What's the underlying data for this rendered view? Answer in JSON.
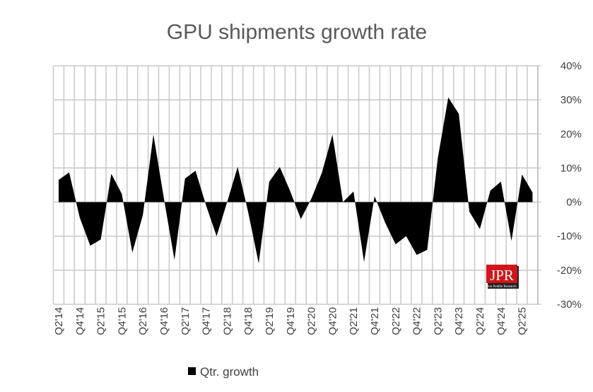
{
  "chart_data": {
    "type": "area",
    "title": "GPU shipments growth rate",
    "categories": [
      "Q2'14",
      "Q3'14",
      "Q4'14",
      "Q1'15",
      "Q2'15",
      "Q3'15",
      "Q4'15",
      "Q1'16",
      "Q2'16",
      "Q3'16",
      "Q4'16",
      "Q1'17",
      "Q2'17",
      "Q3'17",
      "Q4'17",
      "Q1'18",
      "Q2'18",
      "Q3'18",
      "Q4'18",
      "Q1'19",
      "Q2'19",
      "Q3'19",
      "Q4'19",
      "Q1'20",
      "Q2'20",
      "Q3'20",
      "Q4'20",
      "Q1'21",
      "Q2'21",
      "Q3'21",
      "Q4'21",
      "Q1'22",
      "Q2'22",
      "Q3'22",
      "Q4'22",
      "Q1'23",
      "Q2'23",
      "Q3'23",
      "Q4'23",
      "Q1'24",
      "Q2'24",
      "Q3'24",
      "Q4'24",
      "Q1'25",
      "Q2'25",
      "Q3'25"
    ],
    "x_tick_labels": [
      "Q2'14",
      "Q4'14",
      "Q2'15",
      "Q4'15",
      "Q2'16",
      "Q4'16",
      "Q2'17",
      "Q4'17",
      "Q2'18",
      "Q4'18",
      "Q2'19",
      "Q4'19",
      "Q2'20",
      "Q4'20",
      "Q2'21",
      "Q4'21",
      "Q2'22",
      "Q4'22",
      "Q2'23",
      "Q4'23",
      "Q2'24",
      "Q4'24",
      "Q2'25"
    ],
    "series": [
      {
        "name": "Qtr. growth",
        "color": "#000000",
        "values": [
          6.5,
          8.7,
          -4.5,
          -12.8,
          -11,
          8.3,
          2.4,
          -14.8,
          -3.8,
          19.8,
          1,
          -17,
          6.9,
          9.2,
          -1,
          -10,
          0,
          10.3,
          -3,
          -18,
          6,
          10.3,
          3.1,
          -5,
          1,
          8.6,
          19.8,
          0,
          3.1,
          -17.6,
          1.7,
          -6,
          -12.4,
          -10,
          -15.5,
          -14,
          12.8,
          30.7,
          25.9,
          -2.8,
          -7.9,
          3.4,
          6,
          -11.4,
          8.1,
          2.8
        ]
      }
    ],
    "ylim": [
      -30,
      40
    ],
    "y_ticks": [
      40,
      30,
      20,
      10,
      0,
      -10,
      -20,
      -30
    ],
    "y_tick_labels": [
      "40%",
      "30%",
      "20%",
      "10%",
      "0%",
      "-10%",
      "-20%",
      "-30%"
    ],
    "y_axis_side": "right",
    "grid": true,
    "legend": "bottom",
    "logo_text": "JPR Jon Peddie Research"
  }
}
